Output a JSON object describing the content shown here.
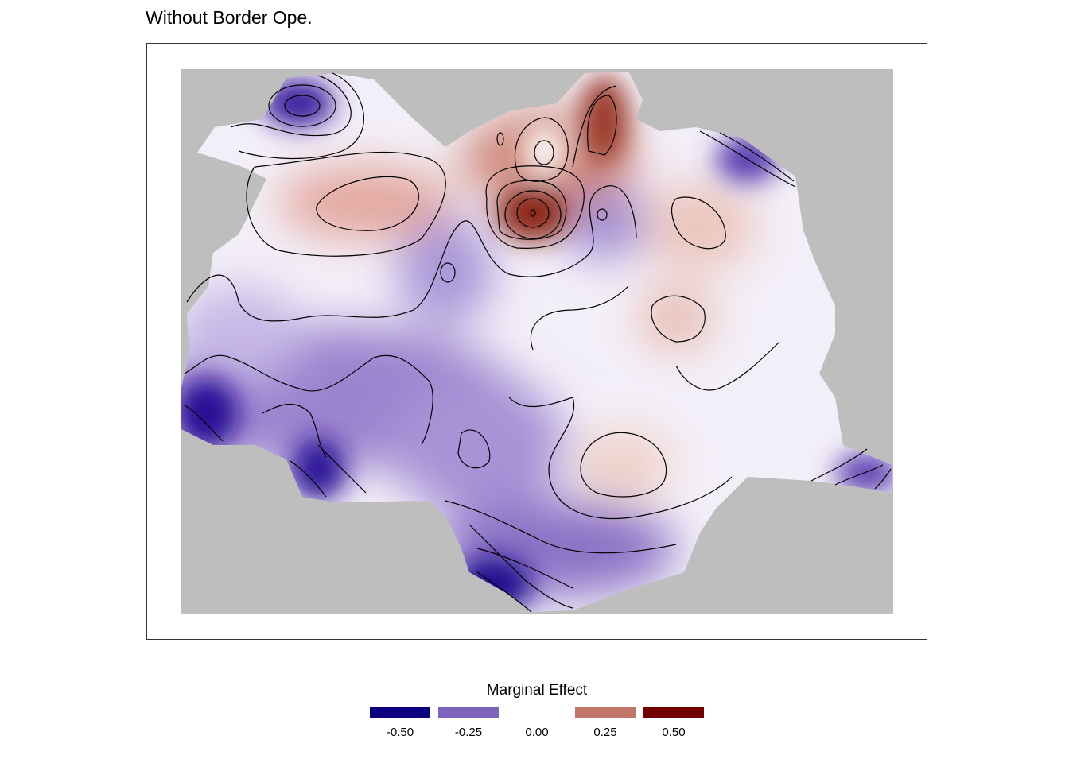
{
  "title": "Without Border Ope.",
  "legend": {
    "title": "Marginal Effect",
    "items": [
      {
        "label": "-0.50",
        "color": "#0b0080"
      },
      {
        "label": "-0.25",
        "color": "#7f64bd"
      },
      {
        "label": "0.00",
        "color": "#ffffff"
      },
      {
        "label": "0.25",
        "color": "#c2766a"
      },
      {
        "label": "0.50",
        "color": "#720000"
      }
    ]
  },
  "map": {
    "background_color": "#bebebe",
    "scale_colors": {
      "low": "#0b0080",
      "mid": "#ffffff",
      "high": "#720000"
    }
  }
}
